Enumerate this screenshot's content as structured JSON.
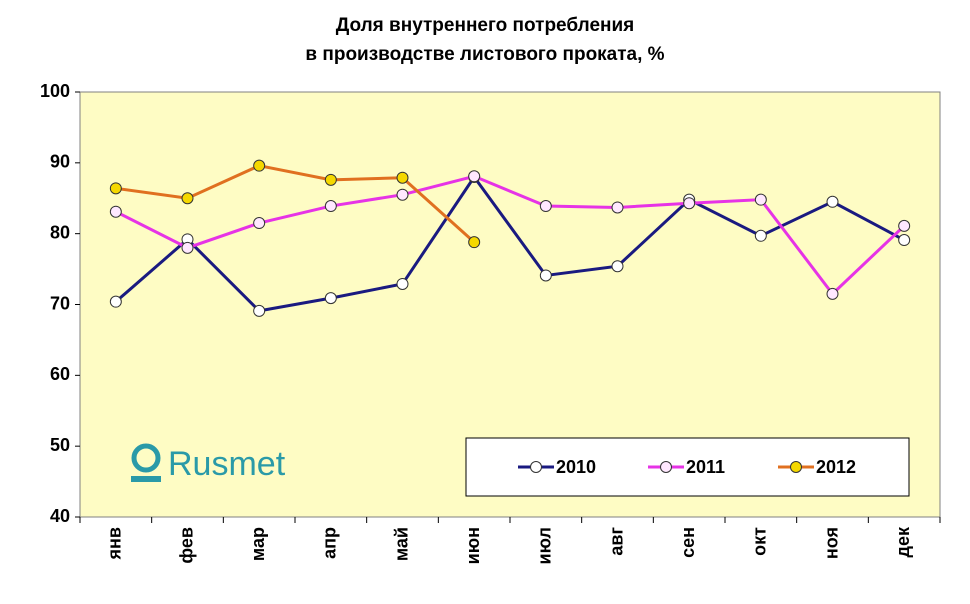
{
  "chart_data": {
    "type": "line",
    "title": [
      "Доля внутреннего потребления",
      "в производстве листового проката, %"
    ],
    "watermark": "Rusmet",
    "categories": [
      "янв",
      "фев",
      "мар",
      "апр",
      "май",
      "июн",
      "июл",
      "авг",
      "сен",
      "окт",
      "ноя",
      "дек"
    ],
    "series": [
      {
        "name": "2010",
        "color": "#1a1a80",
        "marker_color": "#ffffff",
        "values": [
          70.4,
          79.2,
          69.1,
          70.9,
          72.9,
          88.0,
          74.1,
          75.4,
          84.8,
          79.7,
          84.5,
          79.1
        ]
      },
      {
        "name": "2011",
        "color": "#e633e6",
        "marker_color": "#ffe8ff",
        "values": [
          83.1,
          78.0,
          81.5,
          83.9,
          85.5,
          88.1,
          83.9,
          83.7,
          84.3,
          84.8,
          71.5,
          81.1
        ]
      },
      {
        "name": "2012",
        "color": "#e07020",
        "marker_color": "#f5d800",
        "values": [
          86.4,
          85.0,
          89.6,
          87.6,
          87.9,
          78.8,
          null,
          null,
          null,
          null,
          null,
          null
        ]
      }
    ],
    "ylim": [
      40,
      100
    ],
    "yticks": [
      40,
      50,
      60,
      70,
      80,
      90,
      100
    ],
    "grid": false,
    "plot_background": "#fefcc4",
    "legend": "bottom-right"
  }
}
